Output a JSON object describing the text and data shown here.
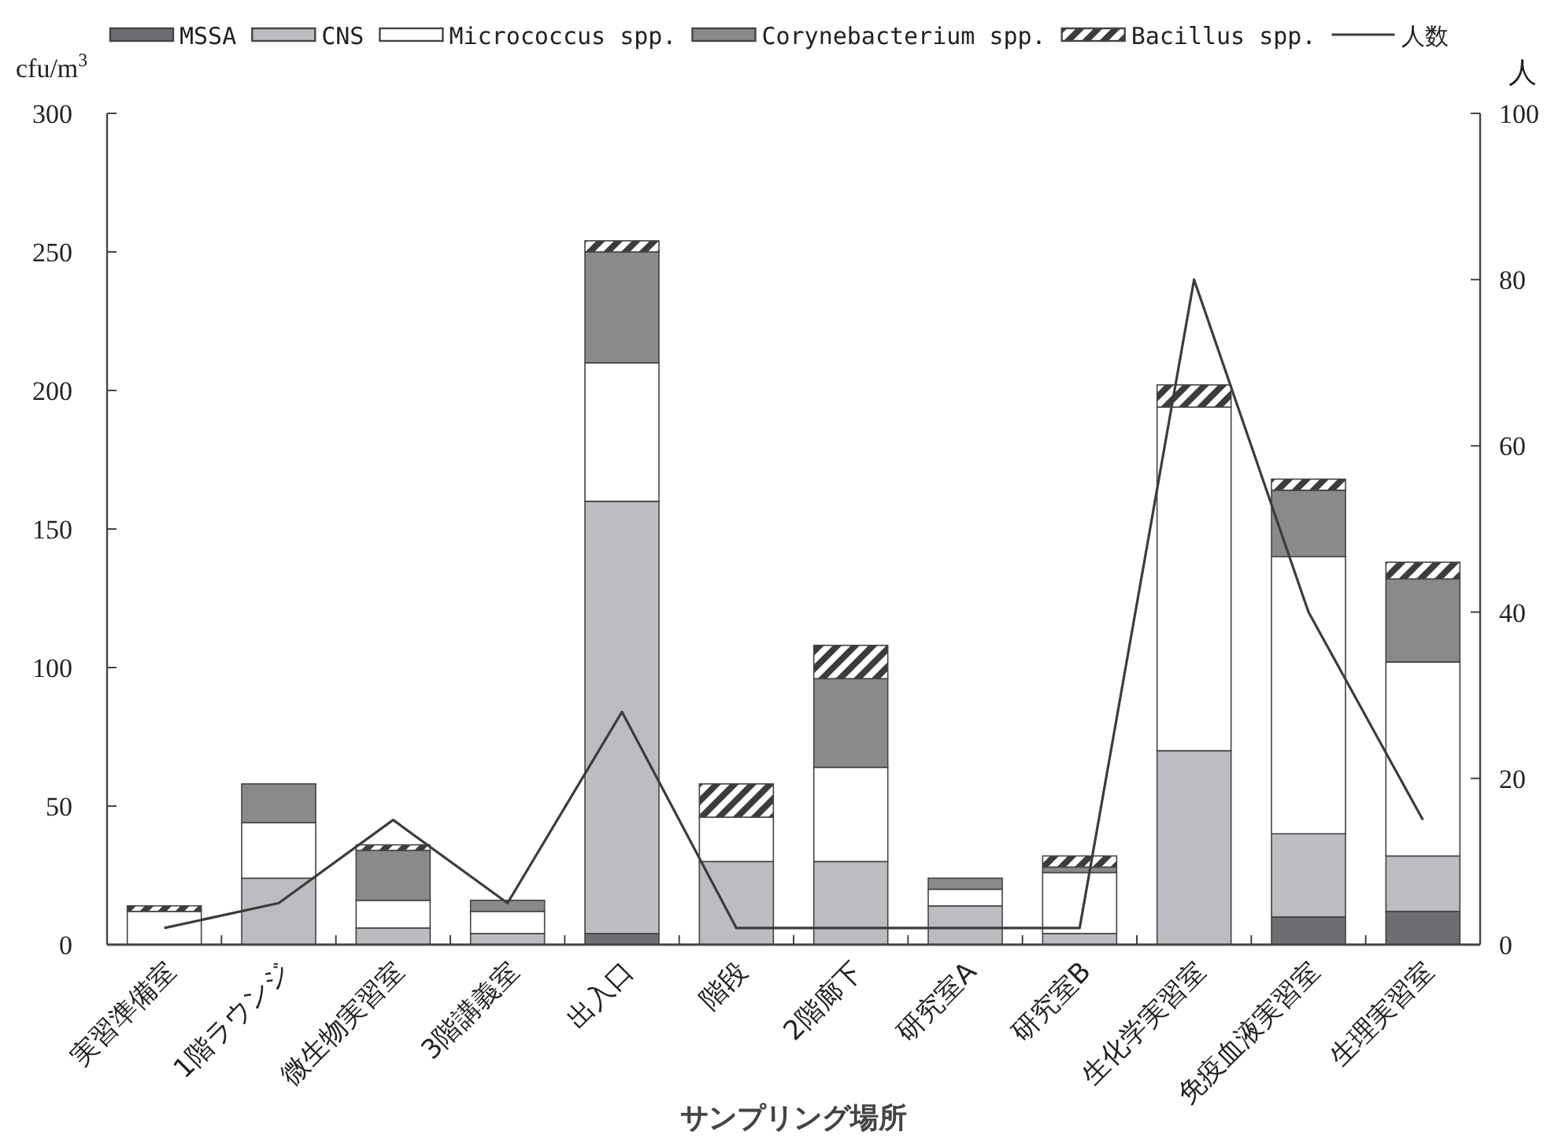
{
  "chart_data": {
    "type": "bar",
    "stacked": true,
    "xlabel": "サンプリング場所",
    "ylabel": "cfu/m$^{3}$",
    "y2label": "人",
    "categories": [
      "実習準備室",
      "1階ラウンジ",
      "微生物実習室",
      "3階講義室",
      "出入口",
      "階段",
      "2階廊下",
      "研究室A",
      "研究室B",
      "生化学実習室",
      "免疫血液実習室",
      "生理実習室"
    ],
    "series": [
      {
        "name": "MSSA",
        "color": "#6d6e71",
        "values": [
          0,
          0,
          0,
          0,
          4,
          0,
          0,
          0,
          0,
          0,
          10,
          12
        ]
      },
      {
        "name": "CNS",
        "color": "#bcbdc0",
        "values": [
          0,
          24,
          6,
          4,
          156,
          30,
          30,
          14,
          4,
          70,
          30,
          20
        ]
      },
      {
        "name": "Micrococcus spp.",
        "color": "#ffffff",
        "values": [
          12,
          20,
          10,
          8,
          50,
          16,
          34,
          6,
          22,
          124,
          100,
          70
        ]
      },
      {
        "name": "Corynebacterium spp.",
        "color": "#8a8a8a",
        "values": [
          0,
          14,
          18,
          4,
          40,
          0,
          32,
          4,
          2,
          0,
          24,
          30
        ]
      },
      {
        "name": "Bacillus spp.",
        "color": "#3c3c3c",
        "values": [
          2,
          0,
          2,
          0,
          4,
          12,
          12,
          0,
          4,
          8,
          4,
          6
        ]
      },
      {
        "name": "人数",
        "type": "line",
        "axis": "y2",
        "color": "#3c3c3c",
        "values": [
          2,
          5,
          15,
          5,
          28,
          2,
          2,
          2,
          2,
          80,
          40,
          15
        ]
      }
    ],
    "ylim": [
      0,
      300
    ],
    "yticks": [
      0,
      50,
      100,
      150,
      200,
      250,
      300
    ],
    "y2lim": [
      0,
      100
    ],
    "y2ticks": [
      0,
      20,
      40,
      60,
      80,
      100
    ],
    "legend": "top"
  }
}
